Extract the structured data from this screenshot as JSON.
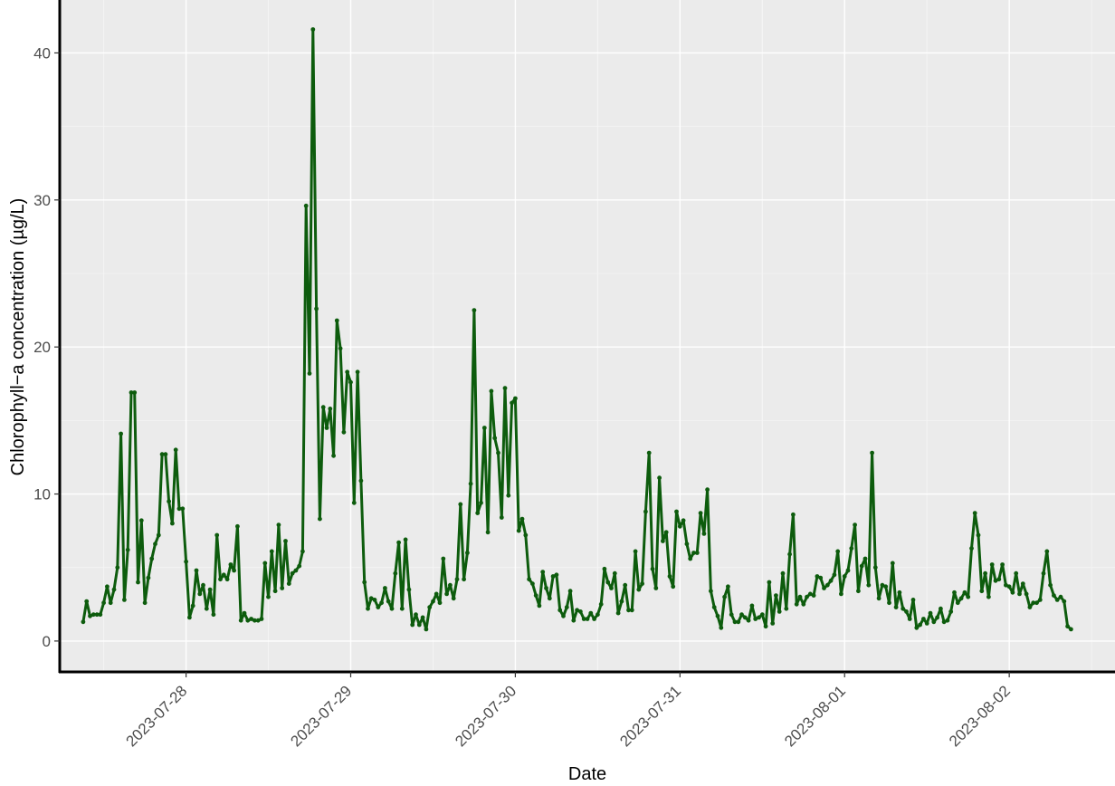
{
  "chart_data": {
    "type": "line",
    "title": "",
    "xlabel": "Date",
    "ylabel": "Chlorophyll−a concentration (µg/L)",
    "x_start": "2023-07-27T09:00",
    "x_end": "2023-08-02T09:00",
    "xlim": [
      "2023-07-27T05:35",
      "2023-08-02T15:25"
    ],
    "ylim": [
      -2.1,
      43.6
    ],
    "x_ticks": [
      "2023-07-28",
      "2023-07-29",
      "2023-07-30",
      "2023-07-31",
      "2023-08-01",
      "2023-08-02"
    ],
    "y_ticks": [
      0,
      10,
      20,
      30,
      40
    ],
    "grid": true,
    "show_points": true,
    "colors": {
      "panel": "#ebebeb",
      "grid_major": "#ffffff",
      "grid_minor": "#f5f5f5",
      "axis_line": "#000000",
      "line": "#0d5c0d"
    },
    "series": [
      {
        "values": [
          1.3,
          2.7,
          1.7,
          1.8,
          1.8,
          1.8,
          2.6,
          3.7,
          2.6,
          3.5,
          5.0,
          14.1,
          2.8,
          6.2,
          16.9,
          16.9,
          4.0,
          8.2,
          2.6,
          4.3,
          5.6,
          6.6,
          7.2,
          12.7,
          12.7,
          9.5,
          8.0,
          13.0,
          9.0,
          9.0,
          5.4,
          1.6,
          2.4,
          4.8,
          3.2,
          3.8,
          2.2,
          3.5,
          1.8,
          7.2,
          4.2,
          4.5,
          4.2,
          5.2,
          4.8,
          7.8,
          1.4,
          1.9,
          1.4,
          1.5,
          1.4,
          1.4,
          1.5,
          5.3,
          3.0,
          6.1,
          3.4,
          7.9,
          3.6,
          6.8,
          3.9,
          4.6,
          4.8,
          5.1,
          6.1,
          29.6,
          18.2,
          41.6,
          22.6,
          8.3,
          15.9,
          14.5,
          15.8,
          12.6,
          21.8,
          19.9,
          14.2,
          18.3,
          17.6,
          9.4,
          18.3,
          10.9,
          4.0,
          2.2,
          2.9,
          2.8,
          2.3,
          2.6,
          3.6,
          2.7,
          2.2,
          4.6,
          6.7,
          2.2,
          6.9,
          3.5,
          1.1,
          1.8,
          1.1,
          1.6,
          0.8,
          2.3,
          2.7,
          3.2,
          2.6,
          5.6,
          3.2,
          3.8,
          2.9,
          4.2,
          9.3,
          4.2,
          6.0,
          10.7,
          22.5,
          8.7,
          9.4,
          14.5,
          7.4,
          17.0,
          13.8,
          12.8,
          8.4,
          17.2,
          9.9,
          16.2,
          16.5,
          7.5,
          8.3,
          7.2,
          4.2,
          3.9,
          3.1,
          2.4,
          4.7,
          3.6,
          2.9,
          4.4,
          4.5,
          2.1,
          1.7,
          2.3,
          3.4,
          1.4,
          2.1,
          2.0,
          1.5,
          1.5,
          1.9,
          1.5,
          1.8,
          2.5,
          4.9,
          4.0,
          3.6,
          4.6,
          1.9,
          2.7,
          3.8,
          2.1,
          2.1,
          6.1,
          3.5,
          3.9,
          8.8,
          12.8,
          4.9,
          3.6,
          11.1,
          6.8,
          7.4,
          4.4,
          3.7,
          8.8,
          7.8,
          8.2,
          6.6,
          5.6,
          6.0,
          6.0,
          8.7,
          7.3,
          10.3,
          3.4,
          2.3,
          1.7,
          0.9,
          3.0,
          3.7,
          1.8,
          1.3,
          1.3,
          1.8,
          1.6,
          1.4,
          2.4,
          1.5,
          1.6,
          1.8,
          1.0,
          4.0,
          1.2,
          3.1,
          2.0,
          4.6,
          2.2,
          5.9,
          8.6,
          2.5,
          3.0,
          2.5,
          3.0,
          3.2,
          3.1,
          4.4,
          4.3,
          3.6,
          3.8,
          4.1,
          4.5,
          6.1,
          3.2,
          4.4,
          4.8,
          6.3,
          7.9,
          3.4,
          5.1,
          5.6,
          3.8,
          12.8,
          5.0,
          2.9,
          3.8,
          3.7,
          2.6,
          5.3,
          2.3,
          3.3,
          2.2,
          2.0,
          1.5,
          2.8,
          0.9,
          1.1,
          1.5,
          1.2,
          1.9,
          1.3,
          1.6,
          2.2,
          1.3,
          1.4,
          2.0,
          3.3,
          2.6,
          2.9,
          3.3,
          3.0,
          6.3,
          8.7,
          7.2,
          3.4,
          4.6,
          3.0,
          5.2,
          4.1,
          4.2,
          5.2,
          3.8,
          3.7,
          3.3,
          4.6,
          3.2,
          3.9,
          3.2,
          2.3,
          2.6,
          2.6,
          2.8,
          4.6,
          6.1,
          3.8,
          3.1,
          2.8,
          3.0,
          2.7,
          1.0,
          0.8
        ]
      }
    ]
  }
}
